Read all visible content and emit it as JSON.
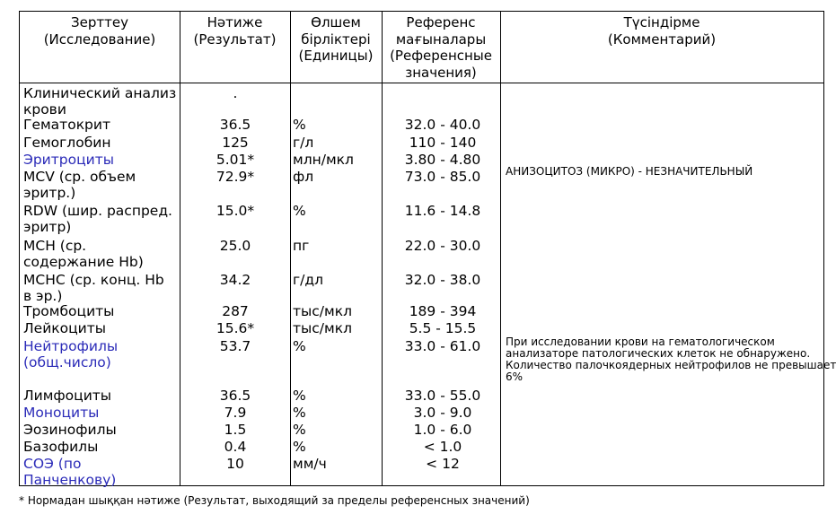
{
  "headers": {
    "study": [
      "Зерттеу",
      "(Исследование)"
    ],
    "result": [
      "Нәтиже",
      "(Результат)"
    ],
    "units": [
      "Өлшем",
      "бірліктері",
      "(Единицы)"
    ],
    "reference": [
      "Референс",
      "мағыналары",
      "(Референсные",
      "значения)"
    ],
    "comment": [
      "Түсіндірме",
      "(Комментарий)"
    ]
  },
  "rows": [
    {
      "name": [
        "Клинический анализ",
        "крови"
      ],
      "result": ".",
      "unit": "",
      "ref": ""
    },
    {
      "name": [
        "Гематокрит"
      ],
      "result": "36.5",
      "unit": "%",
      "ref": "32.0 - 40.0"
    },
    {
      "name": [
        "Гемоглобин"
      ],
      "result": "125",
      "unit": "г/л",
      "ref": "110 - 140"
    },
    {
      "name": [
        "Эритроциты"
      ],
      "result": "5.01*",
      "unit": "млн/мкл",
      "ref": "3.80 - 4.80",
      "link": true
    },
    {
      "name": [
        "MCV (ср. объем",
        "эритр.)"
      ],
      "result": "72.9*",
      "unit": "фл",
      "ref": "73.0 - 85.0"
    },
    {
      "name": [
        "RDW (шир. распред.",
        "эритр)"
      ],
      "result": "15.0*",
      "unit": "%",
      "ref": "11.6 - 14.8"
    },
    {
      "name": [
        "MCH (ср.",
        "содержание Hb)"
      ],
      "result": "25.0",
      "unit": "пг",
      "ref": "22.0 - 30.0"
    },
    {
      "name": [
        "MCHC (ср. конц. Hb",
        "в эр.)"
      ],
      "result": "34.2",
      "unit": "г/дл",
      "ref": "32.0 - 38.0"
    },
    {
      "name": [
        "Тромбоциты"
      ],
      "result": "287",
      "unit": "тыс/мкл",
      "ref": "189 - 394"
    },
    {
      "name": [
        "Лейкоциты"
      ],
      "result": "15.6*",
      "unit": "тыс/мкл",
      "ref": "5.5 - 15.5"
    },
    {
      "name": [
        "Нейтрофилы",
        "(общ.число)"
      ],
      "result": "53.7",
      "unit": "%",
      "ref": "33.0 - 61.0",
      "link": true
    },
    {
      "name": [
        "Лимфоциты"
      ],
      "result": "36.5",
      "unit": "%",
      "ref": "33.0 - 55.0"
    },
    {
      "name": [
        "Моноциты"
      ],
      "result": "7.9",
      "unit": "%",
      "ref": "3.0 - 9.0",
      "link": true
    },
    {
      "name": [
        "Эозинофилы"
      ],
      "result": "1.5",
      "unit": "%",
      "ref": "1.0 - 6.0"
    },
    {
      "name": [
        "Базофилы"
      ],
      "result": "0.4",
      "unit": "%",
      "ref": "< 1.0"
    },
    {
      "name": [
        "СОЭ (по",
        "Панченкову)"
      ],
      "result": "10",
      "unit": "мм/ч",
      "ref": "< 12",
      "link": true
    }
  ],
  "comments": [
    {
      "lines": [
        "АНИЗОЦИТОЗ (МИКРО) - НЕЗНАЧИТЕЛЬНЫЙ"
      ]
    },
    {
      "lines": [
        "При исследовании крови на гематологическом",
        "анализаторе патологических клеток не обнаружено.",
        "Количество палочкоядерных нейтрофилов не превышает",
        "6%"
      ]
    }
  ],
  "footnote": "* Нормадан шыққан нәтиже (Результат, выходящий за пределы референсных значений)"
}
